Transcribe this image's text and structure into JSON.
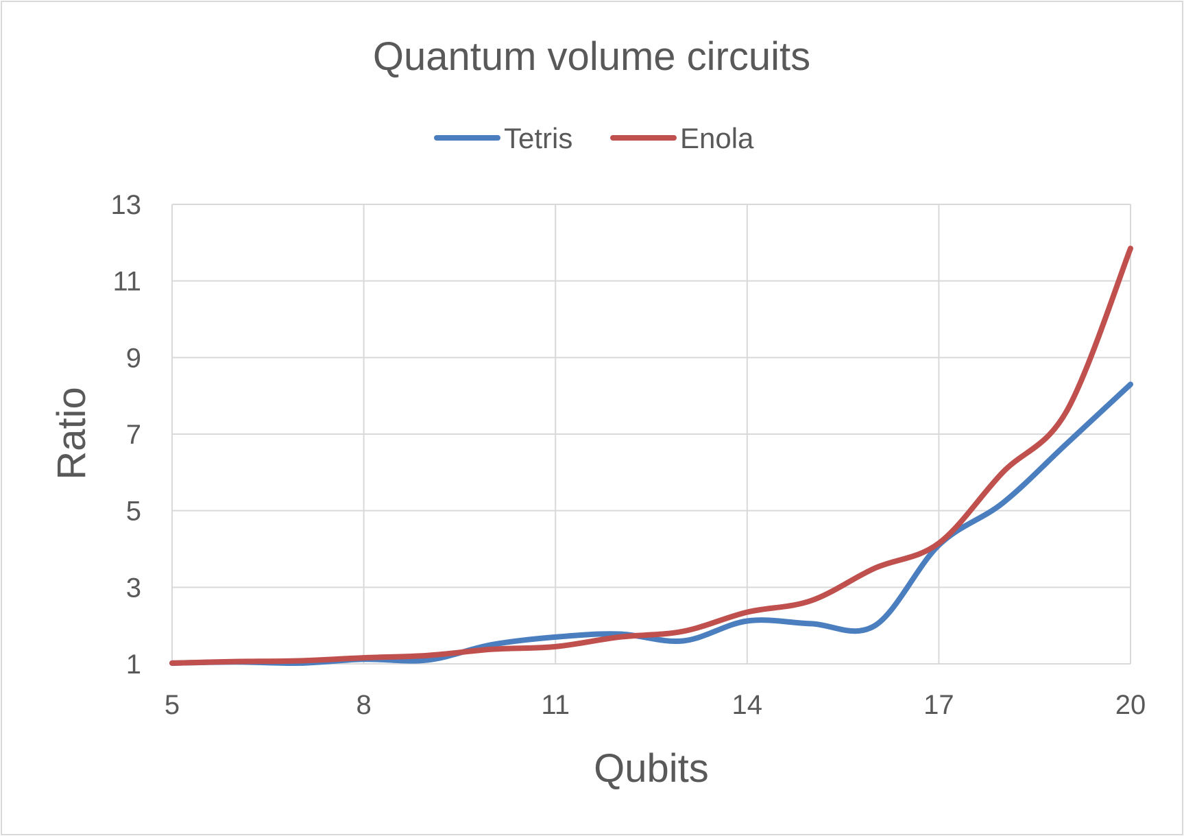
{
  "chart_data": {
    "type": "line",
    "title": "Quantum volume circuits",
    "xlabel": "Qubits",
    "ylabel": "Ratio",
    "xlim": [
      5,
      20
    ],
    "ylim": [
      1,
      13
    ],
    "xticks": [
      "5",
      "8",
      "11",
      "14",
      "17",
      "20"
    ],
    "yticks": [
      "1",
      "3",
      "5",
      "7",
      "9",
      "11",
      "13"
    ],
    "grid": true,
    "legend": "top",
    "x": [
      5,
      6,
      7,
      8,
      9,
      10,
      11,
      12,
      13,
      14,
      15,
      16,
      17,
      18,
      19,
      20
    ],
    "series": [
      {
        "name": "Tetris",
        "color": "#4a7ebf",
        "values": [
          1.02,
          1.05,
          1.02,
          1.12,
          1.1,
          1.5,
          1.7,
          1.78,
          1.6,
          2.12,
          2.05,
          2.0,
          4.1,
          5.2,
          6.75,
          8.3
        ]
      },
      {
        "name": "Enola",
        "color": "#c0504d",
        "values": [
          1.02,
          1.06,
          1.08,
          1.16,
          1.22,
          1.38,
          1.45,
          1.7,
          1.85,
          2.35,
          2.65,
          3.5,
          4.15,
          6.0,
          7.6,
          11.85
        ]
      }
    ]
  }
}
